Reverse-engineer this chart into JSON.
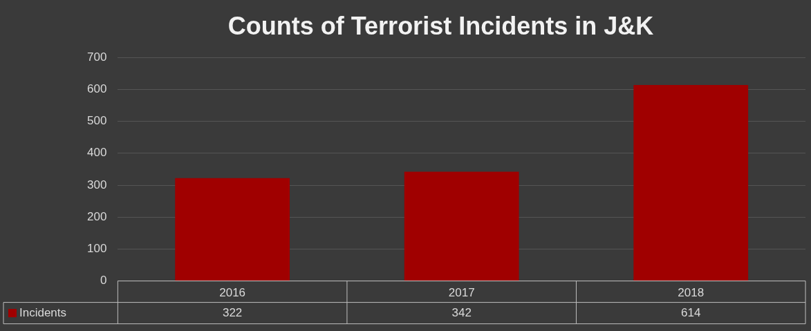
{
  "chart_data": {
    "type": "bar",
    "title": "Counts of Terrorist Incidents in J&K",
    "categories": [
      "2016",
      "2017",
      "2018"
    ],
    "series": [
      {
        "name": "Incidents",
        "color": "#a00000",
        "values": [
          322,
          342,
          614
        ]
      }
    ],
    "ylim": [
      0,
      700
    ],
    "yticks": [
      0,
      100,
      200,
      300,
      400,
      500,
      600,
      700
    ],
    "grid": "y",
    "legend": "bottom",
    "data_labels": true
  }
}
